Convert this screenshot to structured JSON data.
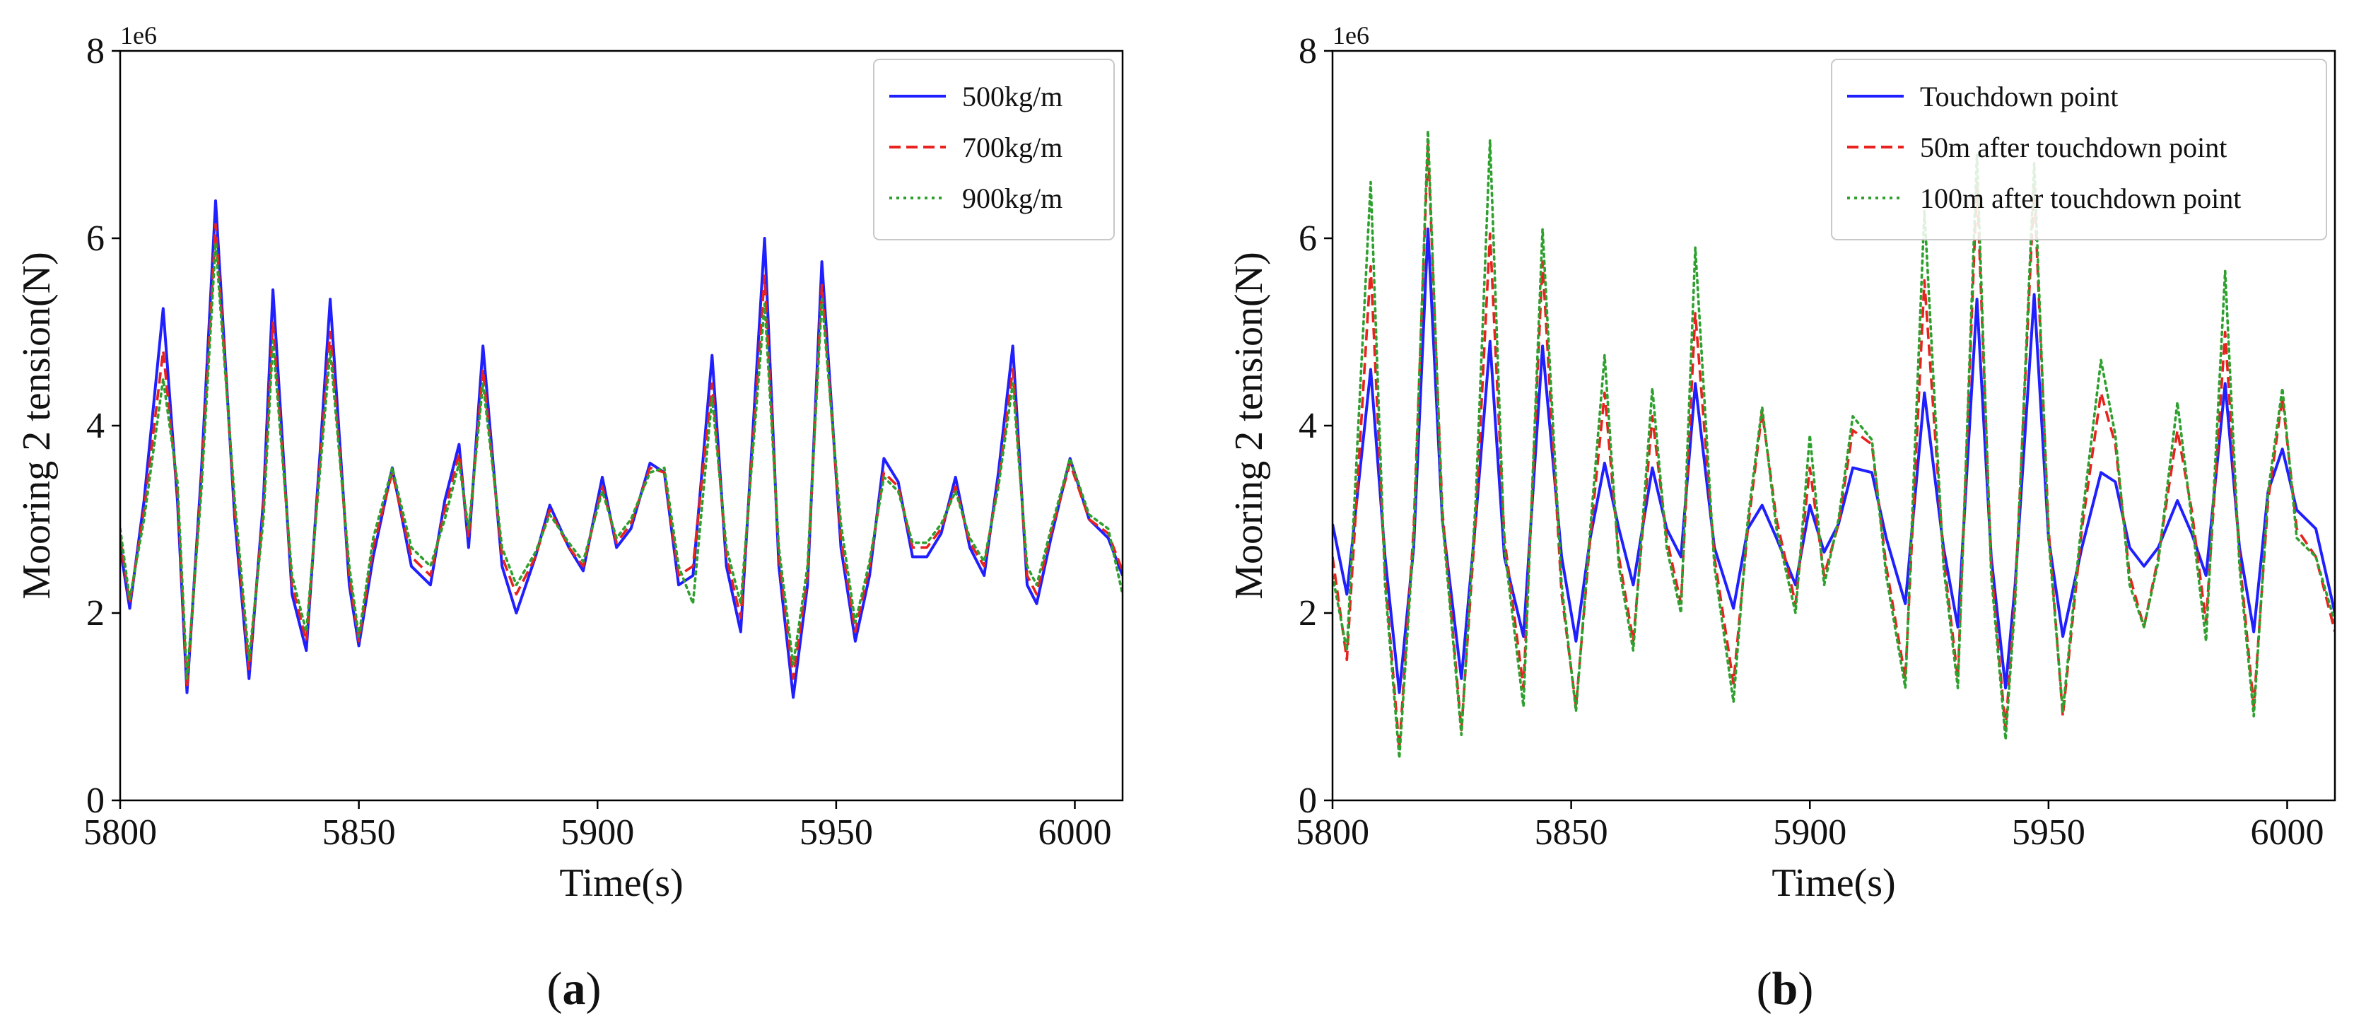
{
  "figure": {
    "captions": [
      {
        "open": "(",
        "letter": "a",
        "close": ")"
      },
      {
        "open": "(",
        "letter": "b",
        "close": ")"
      }
    ]
  },
  "chart_data": [
    {
      "type": "line",
      "title": "",
      "xlabel": "Time(s)",
      "ylabel": "Mooring 2 tension(N)",
      "y_offset_label": "1e6",
      "xlim": [
        5800,
        6010
      ],
      "ylim": [
        0,
        8
      ],
      "y_multiplier": 1000000,
      "xticks": [
        5800,
        5850,
        5900,
        5950,
        6000
      ],
      "xtick_labels": [
        "5800",
        "5850",
        "5900",
        "5950",
        "6000"
      ],
      "yticks": [
        0,
        2,
        4,
        6,
        8
      ],
      "ytick_labels": [
        "0",
        "2",
        "4",
        "6",
        "8"
      ],
      "grid": false,
      "legend_position": "top-right",
      "x": [
        5800,
        5802,
        5805,
        5809,
        5812,
        5814,
        5817,
        5820,
        5824,
        5827,
        5830,
        5832,
        5836,
        5839,
        5842,
        5844,
        5848,
        5850,
        5853,
        5857,
        5861,
        5865,
        5868,
        5871,
        5873,
        5876,
        5880,
        5883,
        5887,
        5890,
        5894,
        5897,
        5901,
        5904,
        5907,
        5911,
        5914,
        5917,
        5920,
        5924,
        5927,
        5930,
        5935,
        5938,
        5941,
        5944,
        5947,
        5951,
        5954,
        5957,
        5960,
        5963,
        5966,
        5969,
        5972,
        5975,
        5978,
        5981,
        5984,
        5987,
        5990,
        5992,
        5995,
        5999,
        6003,
        6007,
        6010
      ],
      "series": [
        {
          "name": "500kg/m",
          "color": "#1f1fff",
          "style": "solid",
          "values": [
            2.7,
            2.05,
            3.2,
            5.25,
            3.2,
            1.15,
            3.5,
            6.4,
            3.0,
            1.3,
            3.2,
            5.45,
            2.2,
            1.6,
            3.8,
            5.35,
            2.3,
            1.65,
            2.6,
            3.55,
            2.5,
            2.3,
            3.2,
            3.8,
            2.7,
            4.85,
            2.5,
            2.0,
            2.6,
            3.15,
            2.7,
            2.45,
            3.45,
            2.7,
            2.9,
            3.6,
            3.5,
            2.3,
            2.4,
            4.75,
            2.5,
            1.8,
            6.0,
            2.5,
            1.1,
            2.3,
            5.75,
            2.7,
            1.7,
            2.4,
            3.65,
            3.4,
            2.6,
            2.6,
            2.85,
            3.45,
            2.7,
            2.4,
            3.5,
            4.85,
            2.3,
            2.1,
            2.8,
            3.65,
            3.0,
            2.8,
            2.4
          ]
        },
        {
          "name": "700kg/m",
          "color": "#e8221e",
          "style": "dashed",
          "values": [
            2.8,
            2.1,
            3.1,
            4.8,
            3.3,
            1.2,
            3.4,
            6.15,
            3.1,
            1.4,
            3.1,
            5.1,
            2.3,
            1.7,
            3.7,
            5.0,
            2.4,
            1.7,
            2.7,
            3.5,
            2.6,
            2.4,
            3.1,
            3.7,
            2.8,
            4.6,
            2.6,
            2.2,
            2.6,
            3.1,
            2.7,
            2.5,
            3.35,
            2.75,
            2.95,
            3.55,
            3.5,
            2.4,
            2.5,
            4.45,
            2.6,
            1.95,
            5.6,
            2.6,
            1.3,
            2.4,
            5.5,
            2.8,
            1.8,
            2.5,
            3.5,
            3.35,
            2.7,
            2.7,
            2.9,
            3.35,
            2.75,
            2.5,
            3.4,
            4.6,
            2.4,
            2.2,
            2.85,
            3.6,
            3.0,
            2.85,
            2.45
          ]
        },
        {
          "name": "900kg/m",
          "color": "#2ea02e",
          "style": "dotted",
          "values": [
            2.9,
            2.15,
            3.0,
            4.5,
            3.4,
            1.3,
            3.3,
            5.95,
            3.2,
            1.5,
            3.0,
            4.9,
            2.4,
            1.8,
            3.6,
            4.8,
            2.5,
            1.75,
            2.8,
            3.55,
            2.7,
            2.5,
            3.0,
            3.6,
            2.9,
            4.45,
            2.7,
            2.3,
            2.65,
            3.05,
            2.75,
            2.55,
            3.3,
            2.8,
            3.0,
            3.5,
            3.55,
            2.5,
            2.1,
            4.3,
            2.7,
            2.1,
            5.3,
            2.7,
            1.45,
            2.5,
            5.35,
            2.95,
            1.9,
            2.55,
            3.45,
            3.3,
            2.75,
            2.75,
            2.95,
            3.3,
            2.8,
            2.55,
            3.35,
            4.45,
            2.5,
            2.3,
            2.9,
            3.65,
            3.05,
            2.9,
            2.2
          ]
        }
      ]
    },
    {
      "type": "line",
      "title": "",
      "xlabel": "Time(s)",
      "ylabel": "Mooring 2 tension(N)",
      "y_offset_label": "1e6",
      "xlim": [
        5800,
        6010
      ],
      "ylim": [
        0,
        8
      ],
      "y_multiplier": 1000000,
      "xticks": [
        5800,
        5850,
        5900,
        5950,
        6000
      ],
      "xtick_labels": [
        "5800",
        "5850",
        "5900",
        "5950",
        "6000"
      ],
      "yticks": [
        0,
        2,
        4,
        6,
        8
      ],
      "ytick_labels": [
        "0",
        "2",
        "4",
        "6",
        "8"
      ],
      "grid": false,
      "legend_position": "top-right",
      "x": [
        5800,
        5803,
        5808,
        5811,
        5814,
        5817,
        5820,
        5823,
        5827,
        5830,
        5833,
        5836,
        5840,
        5844,
        5848,
        5851,
        5854,
        5857,
        5860,
        5863,
        5867,
        5870,
        5873,
        5876,
        5880,
        5884,
        5887,
        5890,
        5893,
        5897,
        5900,
        5903,
        5906,
        5909,
        5913,
        5916,
        5920,
        5924,
        5928,
        5931,
        5935,
        5938,
        5941,
        5943,
        5947,
        5950,
        5953,
        5957,
        5961,
        5964,
        5967,
        5970,
        5973,
        5977,
        5980,
        5983,
        5987,
        5990,
        5993,
        5996,
        5999,
        6002,
        6006,
        6010
      ],
      "series": [
        {
          "name": "Touchdown point",
          "color": "#1f1fff",
          "style": "solid",
          "values": [
            2.95,
            2.2,
            4.6,
            2.6,
            1.15,
            2.7,
            6.1,
            3.0,
            1.3,
            3.0,
            4.9,
            2.6,
            1.75,
            4.85,
            2.6,
            1.7,
            2.8,
            3.6,
            2.9,
            2.3,
            3.55,
            2.9,
            2.6,
            4.45,
            2.7,
            2.05,
            2.9,
            3.15,
            2.8,
            2.3,
            3.15,
            2.65,
            2.95,
            3.55,
            3.5,
            2.8,
            2.1,
            4.35,
            2.7,
            1.85,
            5.35,
            2.6,
            1.2,
            2.3,
            5.4,
            2.8,
            1.75,
            2.7,
            3.5,
            3.4,
            2.7,
            2.5,
            2.7,
            3.2,
            2.85,
            2.4,
            4.45,
            2.7,
            1.8,
            3.3,
            3.75,
            3.1,
            2.9,
            2.0
          ]
        },
        {
          "name": "50m after touchdown point",
          "color": "#e8221e",
          "style": "dashed",
          "values": [
            2.6,
            1.5,
            5.7,
            2.4,
            0.55,
            2.9,
            7.0,
            3.1,
            0.75,
            3.0,
            6.05,
            2.8,
            1.2,
            5.75,
            2.2,
            1.0,
            2.8,
            4.35,
            2.6,
            1.7,
            4.1,
            2.8,
            2.1,
            5.2,
            2.6,
            1.25,
            2.9,
            4.15,
            3.0,
            2.1,
            3.55,
            2.4,
            2.95,
            3.95,
            3.8,
            2.5,
            1.3,
            5.55,
            2.6,
            1.3,
            6.6,
            2.5,
            0.75,
            2.2,
            6.55,
            2.9,
            0.9,
            2.9,
            4.35,
            3.8,
            2.4,
            1.85,
            2.6,
            3.95,
            3.1,
            1.9,
            5.0,
            2.6,
            1.0,
            3.2,
            4.3,
            2.9,
            2.6,
            1.8
          ]
        },
        {
          "name": "100m after touchdown point",
          "color": "#2ea02e",
          "style": "dotted",
          "values": [
            2.4,
            1.6,
            6.6,
            2.3,
            0.45,
            2.8,
            7.15,
            3.0,
            0.7,
            3.2,
            7.05,
            2.7,
            1.0,
            6.1,
            2.3,
            0.95,
            2.9,
            4.75,
            2.5,
            1.6,
            4.4,
            2.7,
            2.0,
            5.9,
            2.5,
            1.05,
            3.0,
            4.2,
            2.9,
            2.0,
            3.9,
            2.3,
            3.0,
            4.1,
            3.85,
            2.4,
            1.2,
            6.3,
            2.5,
            1.2,
            6.9,
            2.4,
            0.65,
            2.1,
            6.8,
            2.8,
            0.95,
            3.0,
            4.7,
            3.9,
            2.3,
            1.85,
            2.55,
            4.25,
            3.0,
            1.7,
            5.65,
            2.5,
            0.9,
            3.3,
            4.4,
            2.8,
            2.6,
            1.9
          ]
        }
      ]
    }
  ]
}
